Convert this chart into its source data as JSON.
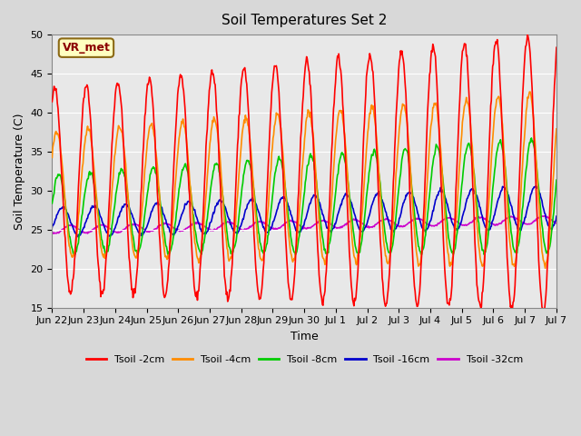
{
  "title": "Soil Temperatures Set 2",
  "xlabel": "Time",
  "ylabel": "Soil Temperature (C)",
  "ylim": [
    15,
    50
  ],
  "fig_facecolor": "#d8d8d8",
  "ax_facecolor": "#e8e8e8",
  "annotation_text": "VR_met",
  "annotation_color": "#8B0000",
  "annotation_bg": "#FFFFC0",
  "annotation_border": "#8B6914",
  "series_colors": {
    "Tsoil -2cm": "#FF0000",
    "Tsoil -4cm": "#FF8C00",
    "Tsoil -8cm": "#00CC00",
    "Tsoil -16cm": "#0000CC",
    "Tsoil -32cm": "#CC00CC"
  },
  "tick_labels": [
    "Jun 22",
    "Jun 23",
    "Jun 24",
    "Jun 25",
    "Jun 26",
    "Jun 27",
    "Jun 28",
    "Jun 29",
    "Jun 30",
    "Jul 1",
    "Jul 2",
    "Jul 3",
    "Jul 4",
    "Jul 5",
    "Jul 6",
    "Jul 7",
    "Jul 7"
  ],
  "num_days": 16,
  "points_per_day": 48,
  "yticks": [
    15,
    20,
    25,
    30,
    35,
    40,
    45,
    50
  ]
}
